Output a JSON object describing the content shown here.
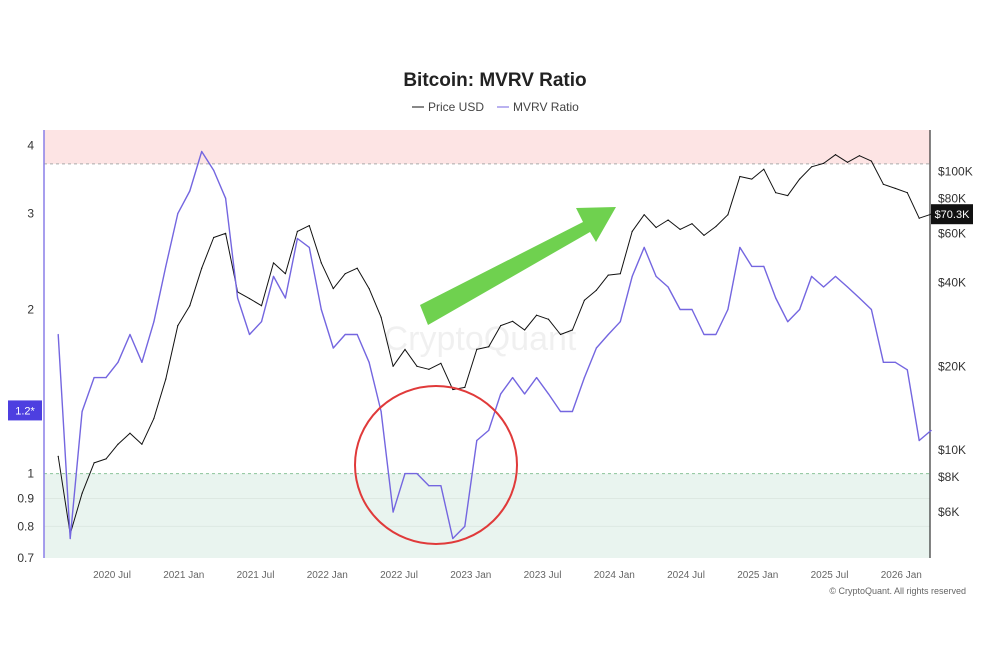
{
  "chart_data": {
    "type": "line",
    "title": "Bitcoin: MVRV Ratio",
    "legend": [
      "Price USD",
      "MVRV Ratio"
    ],
    "legend_placement": "top-center",
    "footer": "© CryptoQuant. All rights reserved",
    "watermark": "CryptoQuant",
    "x_ticks": [
      "2020 Jul",
      "2021 Jan",
      "2021 Jul",
      "2022 Jan",
      "2022 Jul",
      "2023 Jan",
      "2023 Jul",
      "2024 Jan",
      "2024 Jul",
      "2025 Jan",
      "2025 Jul",
      "2026 Jan"
    ],
    "left_axis": {
      "scale": "log",
      "ticks": [
        "4",
        "3",
        "2",
        "1",
        "0.9",
        "0.8",
        "0.7"
      ],
      "tick_values": [
        4,
        3,
        2,
        1,
        0.9,
        0.8,
        0.7
      ],
      "range": [
        0.7,
        4.27
      ],
      "current_label": "1.2*"
    },
    "right_axis": {
      "scale": "log",
      "ticks": [
        "$100K",
        "$80K",
        "$60K",
        "$40K",
        "$20K",
        "$10K",
        "$8K",
        "$6K"
      ],
      "tick_values": [
        100000,
        80000,
        60000,
        40000,
        20000,
        10000,
        8000,
        6000
      ],
      "range": [
        4100,
        141000
      ],
      "current_label": "$70.3K"
    },
    "zones": {
      "overvalued_above": 3.7,
      "undervalued_below": 1.0,
      "overvalued_color": "#fde4e4",
      "undervalued_color": "#e9f4ef"
    },
    "colors": {
      "price": "#111111",
      "mvrv": "#7466e0",
      "arrow": "#6fd14f",
      "circle": "#e03a3a"
    },
    "annotations": [
      "green arrow pointing up-right from 2022 Jul to 2024 Jan",
      "red circle around 2022 Jul – 2023 Jan MVRV below 1"
    ],
    "x": [
      "2020-02",
      "2020-03",
      "2020-04",
      "2020-05",
      "2020-06",
      "2020-07",
      "2020-08",
      "2020-09",
      "2020-10",
      "2020-11",
      "2020-12",
      "2021-01",
      "2021-02",
      "2021-03",
      "2021-04",
      "2021-05",
      "2021-06",
      "2021-07",
      "2021-08",
      "2021-09",
      "2021-10",
      "2021-11",
      "2021-12",
      "2022-01",
      "2022-02",
      "2022-03",
      "2022-04",
      "2022-05",
      "2022-06",
      "2022-07",
      "2022-08",
      "2022-09",
      "2022-10",
      "2022-11",
      "2022-12",
      "2023-01",
      "2023-02",
      "2023-03",
      "2023-04",
      "2023-05",
      "2023-06",
      "2023-07",
      "2023-08",
      "2023-09",
      "2023-10",
      "2023-11",
      "2023-12",
      "2024-01",
      "2024-02",
      "2024-03",
      "2024-04",
      "2024-05",
      "2024-06",
      "2024-07",
      "2024-08",
      "2024-09",
      "2024-10",
      "2024-11",
      "2024-12",
      "2025-01",
      "2025-02",
      "2025-03",
      "2025-04",
      "2025-05",
      "2025-06",
      "2025-07",
      "2025-08",
      "2025-09",
      "2025-10",
      "2025-11",
      "2025-12",
      "2026-01",
      "2026-02",
      "2026-03"
    ],
    "series": [
      {
        "name": "Price USD",
        "axis": "right",
        "values": [
          9500,
          5000,
          7000,
          9000,
          9300,
          10500,
          11500,
          10500,
          13000,
          18000,
          28000,
          33000,
          45000,
          58000,
          60000,
          37000,
          35000,
          33000,
          47000,
          43000,
          61000,
          64000,
          47000,
          38000,
          43000,
          45000,
          38000,
          30000,
          20000,
          23000,
          20000,
          19500,
          20500,
          16500,
          16800,
          23000,
          23500,
          28000,
          29000,
          27000,
          30500,
          29500,
          26000,
          27000,
          34500,
          37500,
          42500,
          43000,
          61000,
          70000,
          63000,
          67000,
          62000,
          65000,
          59000,
          63500,
          70000,
          96000,
          94000,
          102000,
          84000,
          82000,
          94000,
          104000,
          107000,
          115000,
          108000,
          114000,
          109000,
          90000,
          87000,
          84000,
          68000,
          70300
        ]
      },
      {
        "name": "MVRV Ratio",
        "axis": "left",
        "values": [
          1.8,
          0.76,
          1.3,
          1.5,
          1.5,
          1.6,
          1.8,
          1.6,
          1.9,
          2.4,
          3.0,
          3.3,
          3.9,
          3.6,
          3.2,
          2.1,
          1.8,
          1.9,
          2.3,
          2.1,
          2.7,
          2.6,
          2.0,
          1.7,
          1.8,
          1.8,
          1.6,
          1.3,
          0.85,
          1.0,
          1.0,
          0.95,
          0.95,
          0.76,
          0.8,
          1.15,
          1.2,
          1.4,
          1.5,
          1.4,
          1.5,
          1.4,
          1.3,
          1.3,
          1.5,
          1.7,
          1.8,
          1.9,
          2.3,
          2.6,
          2.3,
          2.2,
          2.0,
          2.0,
          1.8,
          1.8,
          2.0,
          2.6,
          2.4,
          2.4,
          2.1,
          1.9,
          2.0,
          2.3,
          2.2,
          2.3,
          2.2,
          2.1,
          2.0,
          1.6,
          1.6,
          1.55,
          1.15,
          1.2
        ]
      }
    ]
  }
}
